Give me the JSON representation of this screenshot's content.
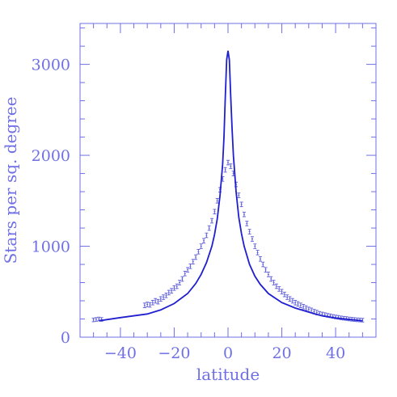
{
  "chart_data": {
    "type": "scatter",
    "xlabel": "latitude",
    "ylabel": "Stars per sq. degree",
    "xlim": [
      -55,
      55
    ],
    "ylim": [
      0,
      3450
    ],
    "xticks": [
      -40,
      -20,
      0,
      20,
      40
    ],
    "xtick_labels": [
      "−40",
      "−20",
      "0",
      "20",
      "40"
    ],
    "yticks": [
      0,
      1000,
      2000,
      3000
    ],
    "ytick_labels": [
      "0",
      "1000",
      "2000",
      "3000"
    ],
    "x_minor_step": 5,
    "y_minor_step": 200,
    "grid": false,
    "colors": {
      "axis": "#6f6fe6",
      "line": "#1f1fcf",
      "points": "#5a5ad8"
    },
    "series": [
      {
        "kind": "points_with_errorbars",
        "points": [
          {
            "x": -50,
            "y": 190,
            "err": 20
          },
          {
            "x": -49,
            "y": 195,
            "err": 20
          },
          {
            "x": -48,
            "y": 200,
            "err": 20
          },
          {
            "x": -47,
            "y": 195,
            "err": 20
          },
          {
            "x": -31,
            "y": 350,
            "err": 25
          },
          {
            "x": -30,
            "y": 360,
            "err": 25
          },
          {
            "x": -29,
            "y": 355,
            "err": 25
          },
          {
            "x": -28,
            "y": 380,
            "err": 25
          },
          {
            "x": -27,
            "y": 400,
            "err": 25
          },
          {
            "x": -26,
            "y": 390,
            "err": 25
          },
          {
            "x": -25,
            "y": 420,
            "err": 25
          },
          {
            "x": -24,
            "y": 440,
            "err": 25
          },
          {
            "x": -23,
            "y": 460,
            "err": 25
          },
          {
            "x": -22,
            "y": 490,
            "err": 25
          },
          {
            "x": -21,
            "y": 510,
            "err": 25
          },
          {
            "x": -20,
            "y": 540,
            "err": 25
          },
          {
            "x": -19,
            "y": 560,
            "err": 25
          },
          {
            "x": -18,
            "y": 600,
            "err": 25
          },
          {
            "x": -17,
            "y": 640,
            "err": 25
          },
          {
            "x": -16,
            "y": 700,
            "err": 25
          },
          {
            "x": -15,
            "y": 740,
            "err": 25
          },
          {
            "x": -14,
            "y": 780,
            "err": 25
          },
          {
            "x": -13,
            "y": 830,
            "err": 25
          },
          {
            "x": -12,
            "y": 880,
            "err": 25
          },
          {
            "x": -11,
            "y": 940,
            "err": 25
          },
          {
            "x": -10,
            "y": 1000,
            "err": 25
          },
          {
            "x": -9,
            "y": 1060,
            "err": 25
          },
          {
            "x": -8,
            "y": 1120,
            "err": 25
          },
          {
            "x": -7,
            "y": 1200,
            "err": 25
          },
          {
            "x": -6,
            "y": 1280,
            "err": 25
          },
          {
            "x": -5,
            "y": 1380,
            "err": 25
          },
          {
            "x": -4,
            "y": 1500,
            "err": 25
          },
          {
            "x": -3,
            "y": 1620,
            "err": 25
          },
          {
            "x": -2,
            "y": 1740,
            "err": 25
          },
          {
            "x": -1,
            "y": 1840,
            "err": 25
          },
          {
            "x": 0,
            "y": 1920,
            "err": 25
          },
          {
            "x": 1,
            "y": 1880,
            "err": 25
          },
          {
            "x": 2,
            "y": 1800,
            "err": 25
          },
          {
            "x": 3,
            "y": 1680,
            "err": 25
          },
          {
            "x": 4,
            "y": 1560,
            "err": 25
          },
          {
            "x": 5,
            "y": 1460,
            "err": 25
          },
          {
            "x": 6,
            "y": 1350,
            "err": 25
          },
          {
            "x": 7,
            "y": 1250,
            "err": 25
          },
          {
            "x": 8,
            "y": 1160,
            "err": 25
          },
          {
            "x": 9,
            "y": 1080,
            "err": 25
          },
          {
            "x": 10,
            "y": 1000,
            "err": 25
          },
          {
            "x": 11,
            "y": 930,
            "err": 25
          },
          {
            "x": 12,
            "y": 860,
            "err": 25
          },
          {
            "x": 13,
            "y": 800,
            "err": 25
          },
          {
            "x": 14,
            "y": 740,
            "err": 25
          },
          {
            "x": 15,
            "y": 690,
            "err": 25
          },
          {
            "x": 16,
            "y": 640,
            "err": 25
          },
          {
            "x": 17,
            "y": 600,
            "err": 25
          },
          {
            "x": 18,
            "y": 560,
            "err": 25
          },
          {
            "x": 19,
            "y": 530,
            "err": 25
          },
          {
            "x": 20,
            "y": 500,
            "err": 25
          },
          {
            "x": 21,
            "y": 470,
            "err": 25
          },
          {
            "x": 22,
            "y": 440,
            "err": 25
          },
          {
            "x": 23,
            "y": 420,
            "err": 25
          },
          {
            "x": 24,
            "y": 400,
            "err": 25
          },
          {
            "x": 25,
            "y": 380,
            "err": 25
          },
          {
            "x": 26,
            "y": 365,
            "err": 25
          },
          {
            "x": 27,
            "y": 350,
            "err": 25
          },
          {
            "x": 28,
            "y": 335,
            "err": 25
          },
          {
            "x": 29,
            "y": 320,
            "err": 25
          },
          {
            "x": 30,
            "y": 305,
            "err": 25
          },
          {
            "x": 31,
            "y": 295,
            "err": 25
          },
          {
            "x": 32,
            "y": 280,
            "err": 25
          },
          {
            "x": 33,
            "y": 270,
            "err": 25
          },
          {
            "x": 34,
            "y": 262,
            "err": 20
          },
          {
            "x": 35,
            "y": 255,
            "err": 20
          },
          {
            "x": 36,
            "y": 248,
            "err": 20
          },
          {
            "x": 37,
            "y": 240,
            "err": 20
          },
          {
            "x": 38,
            "y": 235,
            "err": 20
          },
          {
            "x": 39,
            "y": 228,
            "err": 20
          },
          {
            "x": 40,
            "y": 222,
            "err": 20
          },
          {
            "x": 41,
            "y": 218,
            "err": 20
          },
          {
            "x": 42,
            "y": 212,
            "err": 20
          },
          {
            "x": 43,
            "y": 208,
            "err": 20
          },
          {
            "x": 44,
            "y": 205,
            "err": 20
          },
          {
            "x": 45,
            "y": 200,
            "err": 20
          },
          {
            "x": 46,
            "y": 197,
            "err": 20
          },
          {
            "x": 47,
            "y": 194,
            "err": 20
          },
          {
            "x": 48,
            "y": 191,
            "err": 20
          },
          {
            "x": 49,
            "y": 189,
            "err": 20
          },
          {
            "x": 50,
            "y": 187,
            "err": 20
          }
        ]
      },
      {
        "kind": "line",
        "x": [
          -48,
          -40,
          -35,
          -30,
          -25,
          -20,
          -15,
          -12,
          -10,
          -8,
          -6,
          -5,
          -4,
          -3,
          -2,
          -1.5,
          -1,
          -0.5,
          0,
          0.5,
          1,
          1.5,
          2,
          3,
          4,
          5,
          6,
          8,
          10,
          12,
          15,
          20,
          25,
          30,
          35,
          40,
          45,
          50
        ],
        "y": [
          180,
          215,
          235,
          255,
          300,
          370,
          480,
          590,
          690,
          820,
          1000,
          1130,
          1300,
          1550,
          1900,
          2200,
          2650,
          3050,
          3150,
          3050,
          2650,
          2300,
          2000,
          1600,
          1320,
          1140,
          1000,
          800,
          670,
          580,
          480,
          380,
          320,
          275,
          235,
          210,
          195,
          180
        ]
      }
    ]
  }
}
